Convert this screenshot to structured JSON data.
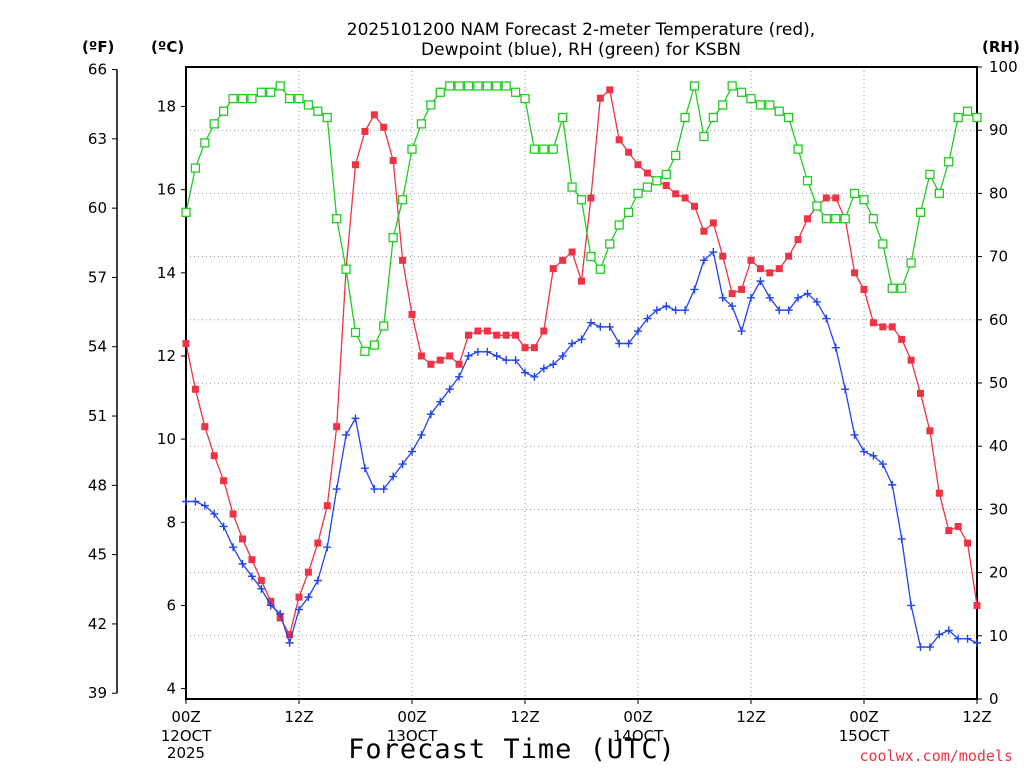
{
  "chart_data": {
    "type": "line",
    "title_line1": "2025101200 NAM Forecast 2-meter Temperature (red),",
    "title_line2": "Dewpoint (blue), RH (green) for KSBN",
    "unit_left_f": "(ºF)",
    "unit_left_c": "(ºC)",
    "unit_right": "(RH)",
    "xlabel": "Forecast Time (UTC)",
    "credit": "coolwx.com/models",
    "x_ticks": [
      {
        "label": "00Z",
        "sub1": "12OCT",
        "sub2": "2025"
      },
      {
        "label": "12Z",
        "sub1": "",
        "sub2": ""
      },
      {
        "label": "00Z",
        "sub1": "13OCT",
        "sub2": ""
      },
      {
        "label": "12Z",
        "sub1": "",
        "sub2": ""
      },
      {
        "label": "00Z",
        "sub1": "14OCT",
        "sub2": ""
      },
      {
        "label": "12Z",
        "sub1": "",
        "sub2": ""
      },
      {
        "label": "00Z",
        "sub1": "15OCT",
        "sub2": ""
      },
      {
        "label": "12Z",
        "sub1": "",
        "sub2": ""
      }
    ],
    "xlim": [
      0,
      84
    ],
    "celsius_ticks": [
      "4",
      "6",
      "8",
      "10",
      "12",
      "14",
      "16",
      "18"
    ],
    "fahrenheit_ticks": [
      "39",
      "42",
      "45",
      "48",
      "51",
      "54",
      "57",
      "60",
      "63",
      "66"
    ],
    "rh_ticks": [
      "0",
      "10",
      "20",
      "30",
      "40",
      "50",
      "60",
      "70",
      "80",
      "90",
      "100"
    ],
    "ylim_celsius": [
      3.75,
      18.95
    ],
    "ylim_rh": [
      0,
      100
    ],
    "grid": true,
    "series": [
      {
        "name": "Temperature",
        "color": "#ee3344",
        "marker": "filled-square",
        "x": [
          0,
          1,
          2,
          3,
          4,
          5,
          6,
          7,
          8,
          9,
          10,
          11,
          12,
          13,
          14,
          15,
          16,
          17,
          18,
          19,
          20,
          21,
          22,
          23,
          24,
          25,
          26,
          27,
          28,
          29,
          30,
          31,
          32,
          33,
          34,
          35,
          36,
          37,
          38,
          39,
          40,
          41,
          42,
          43,
          44,
          45,
          46,
          47,
          48,
          49,
          50,
          51,
          52,
          53,
          54,
          55,
          56,
          57,
          58,
          59,
          60,
          61,
          62,
          63,
          64,
          65,
          66,
          67,
          68,
          69,
          70,
          71,
          72,
          73,
          74,
          75,
          76,
          77,
          78,
          79,
          80,
          81,
          82,
          83,
          84
        ],
        "y": [
          12.3,
          11.2,
          10.3,
          9.6,
          9.0,
          8.2,
          7.6,
          7.1,
          6.6,
          6.1,
          5.7,
          5.3,
          6.2,
          6.8,
          7.5,
          8.4,
          10.3,
          14.1,
          16.6,
          17.4,
          17.8,
          17.5,
          16.7,
          14.3,
          13.0,
          12.0,
          11.8,
          11.9,
          12.0,
          11.8,
          12.5,
          12.6,
          12.6,
          12.5,
          12.5,
          12.5,
          12.2,
          12.2,
          12.6,
          14.1,
          14.3,
          14.5,
          13.8,
          15.8,
          18.2,
          18.4,
          17.2,
          16.9,
          16.6,
          16.4,
          16.2,
          16.1,
          15.9,
          15.8,
          15.6,
          15.0,
          15.2,
          14.4,
          13.5,
          13.6,
          14.3,
          14.1,
          14.0,
          14.1,
          14.4,
          14.8,
          15.3,
          15.6,
          15.8,
          15.8,
          15.3,
          14.0,
          13.6,
          12.8,
          12.7,
          12.7,
          12.4,
          11.9,
          11.1,
          10.2,
          8.7,
          7.8,
          7.9,
          7.5,
          6.0
        ]
      },
      {
        "name": "Dewpoint",
        "color": "#2244ee",
        "marker": "plus",
        "x": [
          0,
          1,
          2,
          3,
          4,
          5,
          6,
          7,
          8,
          9,
          10,
          11,
          12,
          13,
          14,
          15,
          16,
          17,
          18,
          19,
          20,
          21,
          22,
          23,
          24,
          25,
          26,
          27,
          28,
          29,
          30,
          31,
          32,
          33,
          34,
          35,
          36,
          37,
          38,
          39,
          40,
          41,
          42,
          43,
          44,
          45,
          46,
          47,
          48,
          49,
          50,
          51,
          52,
          53,
          54,
          55,
          56,
          57,
          58,
          59,
          60,
          61,
          62,
          63,
          64,
          65,
          66,
          67,
          68,
          69,
          70,
          71,
          72,
          73,
          74,
          75,
          76,
          77,
          78,
          79,
          80,
          81,
          82,
          83,
          84
        ],
        "y": [
          8.5,
          8.5,
          8.4,
          8.2,
          7.9,
          7.4,
          7.0,
          6.7,
          6.4,
          6.0,
          5.8,
          5.1,
          5.9,
          6.2,
          6.6,
          7.4,
          8.8,
          10.1,
          10.5,
          9.3,
          8.8,
          8.8,
          9.1,
          9.4,
          9.7,
          10.1,
          10.6,
          10.9,
          11.2,
          11.5,
          12.0,
          12.1,
          12.1,
          12.0,
          11.9,
          11.9,
          11.6,
          11.5,
          11.7,
          11.8,
          12.0,
          12.3,
          12.4,
          12.8,
          12.7,
          12.7,
          12.3,
          12.3,
          12.6,
          12.9,
          13.1,
          13.2,
          13.1,
          13.1,
          13.6,
          14.3,
          14.5,
          13.4,
          13.2,
          12.6,
          13.4,
          13.8,
          13.4,
          13.1,
          13.1,
          13.4,
          13.5,
          13.3,
          12.9,
          12.2,
          11.2,
          10.1,
          9.7,
          9.6,
          9.4,
          8.9,
          7.6,
          6.0,
          5.0,
          5.0,
          5.3,
          5.4,
          5.2,
          5.2,
          5.1
        ]
      },
      {
        "name": "RH",
        "color": "#22cc22",
        "marker": "open-square",
        "x": [
          0,
          1,
          2,
          3,
          4,
          5,
          6,
          7,
          8,
          9,
          10,
          11,
          12,
          13,
          14,
          15,
          16,
          17,
          18,
          19,
          20,
          21,
          22,
          23,
          24,
          25,
          26,
          27,
          28,
          29,
          30,
          31,
          32,
          33,
          34,
          35,
          36,
          37,
          38,
          39,
          40,
          41,
          42,
          43,
          44,
          45,
          46,
          47,
          48,
          49,
          50,
          51,
          52,
          53,
          54,
          55,
          56,
          57,
          58,
          59,
          60,
          61,
          62,
          63,
          64,
          65,
          66,
          67,
          68,
          69,
          70,
          71,
          72,
          73,
          74,
          75,
          76,
          77,
          78,
          79,
          80,
          81,
          82,
          83,
          84
        ],
        "y": [
          77,
          84,
          88,
          91,
          93,
          95,
          95,
          95,
          96,
          96,
          97,
          95,
          95,
          94,
          93,
          92,
          76,
          68,
          58,
          55,
          56,
          59,
          73,
          79,
          87,
          91,
          94,
          96,
          97,
          97,
          97,
          97,
          97,
          97,
          97,
          96,
          95,
          87,
          87,
          87,
          92,
          81,
          79,
          70,
          68,
          72,
          75,
          77,
          80,
          81,
          82,
          83,
          86,
          92,
          97,
          89,
          92,
          94,
          97,
          96,
          95,
          94,
          94,
          93,
          92,
          87,
          82,
          78,
          76,
          76,
          76,
          80,
          79,
          76,
          72,
          65,
          65,
          69,
          77,
          83,
          80,
          85,
          92,
          93,
          92
        ]
      }
    ]
  }
}
